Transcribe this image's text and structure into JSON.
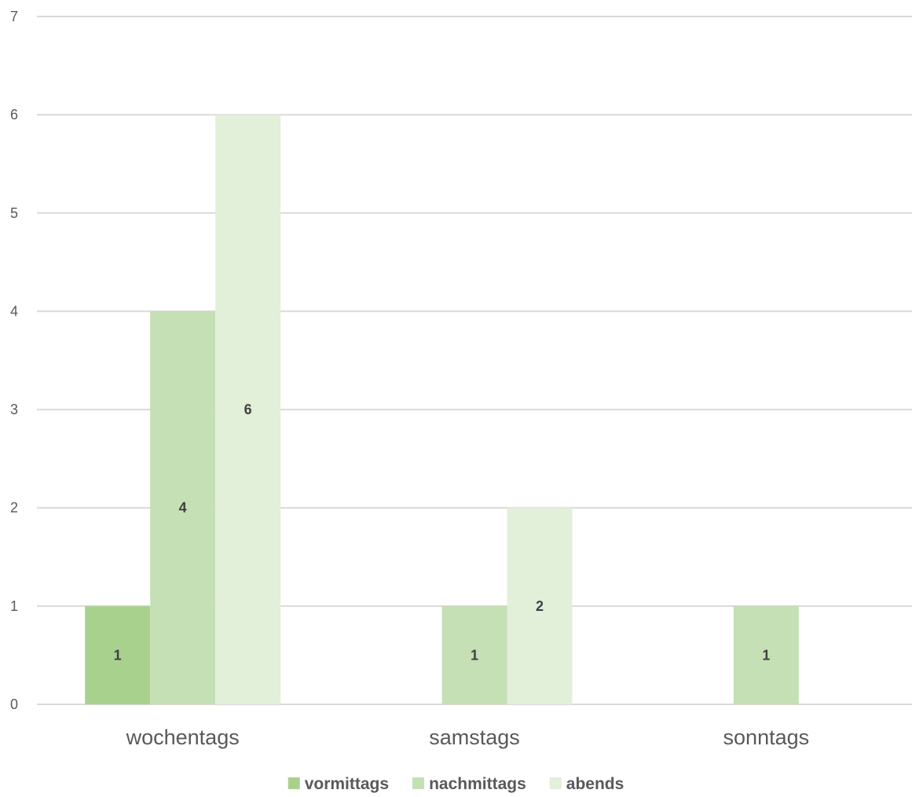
{
  "chart_data": {
    "type": "bar",
    "categories": [
      "wochentags",
      "samstags",
      "sonntags"
    ],
    "series": [
      {
        "name": "vormittags",
        "values": [
          1,
          0,
          0
        ],
        "color": "#a9d18e"
      },
      {
        "name": "nachmittags",
        "values": [
          4,
          1,
          1
        ],
        "color": "#c5e0b4"
      },
      {
        "name": "abends",
        "values": [
          6,
          2,
          0
        ],
        "color": "#e2efd9"
      }
    ],
    "ylim": [
      0,
      7
    ],
    "yticks": [
      0,
      1,
      2,
      3,
      4,
      5,
      6,
      7
    ],
    "grid": true,
    "legend": "bottom",
    "title": "",
    "xlabel": "",
    "ylabel": ""
  }
}
